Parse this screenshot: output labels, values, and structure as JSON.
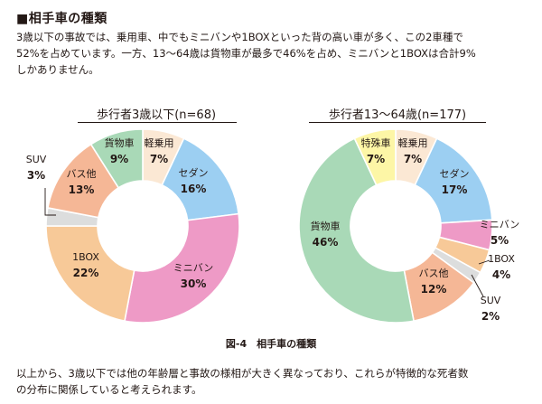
{
  "section_heading": "■相手車の種類",
  "intro_lines": [
    "3歳以下の事故では、乗用車、中でもミニバンや1BOXといった背の高い車が多く、この2車種で",
    "52%を占めています。一方、13～64歳は貨物車が最多で46%を占め、ミニバンと1BOXは合計9%",
    "しかありません。"
  ],
  "figure_caption": "図-4　相手車の種類",
  "closing_lines": [
    "以上から、3歳以下では他の年齢層と事故の様相が大きく異なっており、これらが特徴的な死者数",
    "の分布に関係していると考えられます。"
  ],
  "colors": {
    "軽乗用": "#fbe8d4",
    "セダン": "#9ccff2",
    "ミニバン": "#ee9ac6",
    "1BOX": "#f7c998",
    "バス他": "#f5b796",
    "SUV": "#dcdddd",
    "貨物車": "#a9d9b7",
    "特殊車": "#fdf6a6"
  },
  "chart_data": [
    {
      "type": "pie",
      "title": "歩行者3歳以下(n=68)",
      "slices": [
        {
          "label": "軽乗用",
          "value": 7,
          "pct_label": "7%"
        },
        {
          "label": "セダン",
          "value": 16,
          "pct_label": "16%"
        },
        {
          "label": "ミニバン",
          "value": 30,
          "pct_label": "30%"
        },
        {
          "label": "1BOX",
          "value": 22,
          "pct_label": "22%"
        },
        {
          "label": "SUV",
          "value": 3,
          "pct_label": "3%"
        },
        {
          "label": "バス他",
          "value": 13,
          "pct_label": "13%"
        },
        {
          "label": "貨物車",
          "value": 9,
          "pct_label": "9%"
        }
      ]
    },
    {
      "type": "pie",
      "title": "歩行者13～64歳(n=177)",
      "slices": [
        {
          "label": "軽乗用",
          "value": 7,
          "pct_label": "7%"
        },
        {
          "label": "セダン",
          "value": 17,
          "pct_label": "17%"
        },
        {
          "label": "ミニバン",
          "value": 5,
          "pct_label": "5%"
        },
        {
          "label": "1BOX",
          "value": 4,
          "pct_label": "4%"
        },
        {
          "label": "SUV",
          "value": 2,
          "pct_label": "2%"
        },
        {
          "label": "バス他",
          "value": 12,
          "pct_label": "12%"
        },
        {
          "label": "貨物車",
          "value": 46,
          "pct_label": "46%"
        },
        {
          "label": "特殊車",
          "value": 7,
          "pct_label": "7%"
        }
      ]
    }
  ]
}
